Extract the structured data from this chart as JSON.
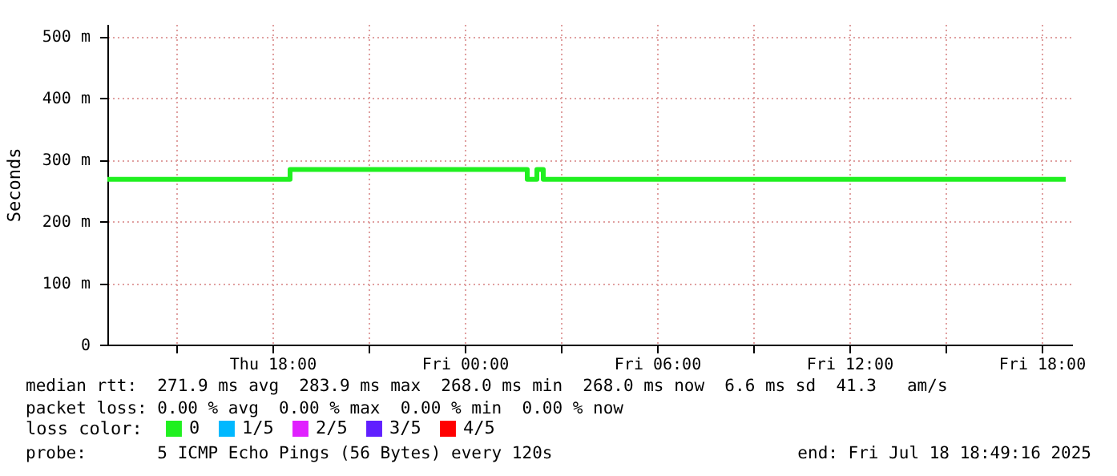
{
  "chart_data": {
    "type": "step",
    "ylabel": "Seconds",
    "x": [
      "2025-07-17T12:51",
      "2025-07-17T18:33",
      "2025-07-18T01:57",
      "2025-07-18T02:15",
      "2025-07-18T02:27",
      "2025-07-18T18:45"
    ],
    "series": [
      {
        "name": "0",
        "color": "#20f020",
        "values": [
          268,
          284,
          268,
          284,
          268,
          268
        ]
      },
      {
        "name": "1/5",
        "color": "#00b8ff",
        "values": [
          null,
          null,
          null,
          null,
          null,
          null
        ]
      },
      {
        "name": "2/5",
        "color": "#e020ff",
        "values": [
          null,
          null,
          null,
          null,
          null,
          null
        ]
      },
      {
        "name": "3/5",
        "color": "#6020ff",
        "values": [
          null,
          null,
          null,
          null,
          null,
          null
        ]
      },
      {
        "name": "4/5",
        "color": "#ff0000",
        "values": [
          null,
          null,
          null,
          null,
          null,
          null
        ]
      }
    ],
    "legend_title": "loss color:",
    "legend": "bottom left",
    "xlim": [
      "2025-07-17T12:51",
      "2025-07-18T18:57"
    ],
    "xticks": [
      {
        "value": "2025-07-17T15:00",
        "label": null
      },
      {
        "value": "2025-07-17T18:00",
        "label": "Thu 18:00"
      },
      {
        "value": "2025-07-17T21:00",
        "label": null
      },
      {
        "value": "2025-07-18T00:00",
        "label": "Fri 00:00"
      },
      {
        "value": "2025-07-18T03:00",
        "label": null
      },
      {
        "value": "2025-07-18T06:00",
        "label": "Fri 06:00"
      },
      {
        "value": "2025-07-18T09:00",
        "label": null
      },
      {
        "value": "2025-07-18T12:00",
        "label": "Fri 12:00"
      },
      {
        "value": "2025-07-18T15:00",
        "label": null
      },
      {
        "value": "2025-07-18T18:00",
        "label": "Fri 18:00"
      }
    ],
    "ylim": [
      0,
      520
    ],
    "yticks": [
      0,
      {
        "value": 100,
        "label": "100 m"
      },
      {
        "value": 200,
        "label": "200 m"
      },
      {
        "value": 300,
        "label": "300 m"
      },
      {
        "value": 400,
        "label": "400 m"
      },
      {
        "value": 500,
        "label": "500 m"
      }
    ],
    "grid": true,
    "annotations": [
      "median rtt:  271.9 ms avg  283.9 ms max  268.0 ms min  268.0 ms now  6.6 ms sd  41.3   am/s",
      "packet loss: 0.00 % avg  0.00 % max  0.00 % min  0.00 % now",
      "probe:       5 ICMP Echo Pings (56 Bytes) every 120s",
      "end: Fri Jul 18 18:49:16 2025"
    ]
  }
}
